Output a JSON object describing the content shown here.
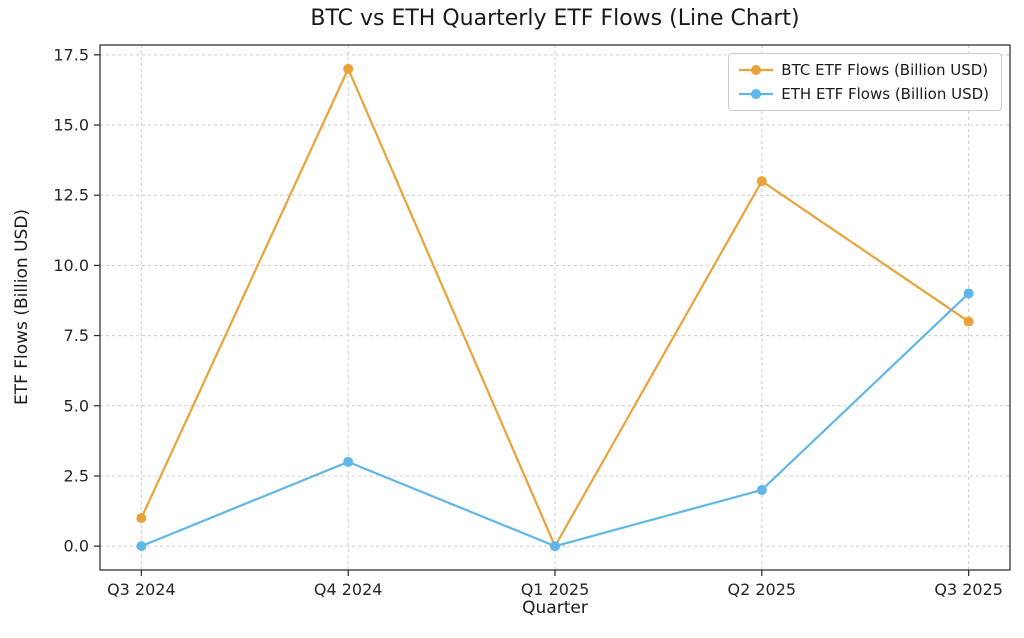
{
  "chart_data": {
    "type": "line",
    "title": "BTC vs ETH Quarterly ETF Flows (Line Chart)",
    "xlabel": "Quarter",
    "ylabel": "ETF Flows (Billion USD)",
    "categories": [
      "Q3 2024",
      "Q4 2024",
      "Q1 2025",
      "Q2 2025",
      "Q3 2025"
    ],
    "series": [
      {
        "name": "BTC ETF Flows (Billion USD)",
        "color": "#E8A33A",
        "values": [
          1,
          17,
          0,
          13,
          8
        ]
      },
      {
        "name": "ETH ETF Flows (Billion USD)",
        "color": "#5FB6E8",
        "values": [
          0,
          3,
          0,
          2,
          9
        ]
      }
    ],
    "yticks": [
      0.0,
      2.5,
      5.0,
      7.5,
      10.0,
      12.5,
      15.0,
      17.5
    ],
    "ytick_labels": [
      "0.0",
      "2.5",
      "5.0",
      "7.5",
      "10.0",
      "12.5",
      "15.0",
      "17.5"
    ],
    "ylim": [
      -0.85,
      17.85
    ],
    "x_margin": 0.05,
    "grid": true,
    "grid_color": "#cccccc",
    "grid_dash": "3,3",
    "axis_color": "#262626",
    "legend_position": "upper right"
  }
}
